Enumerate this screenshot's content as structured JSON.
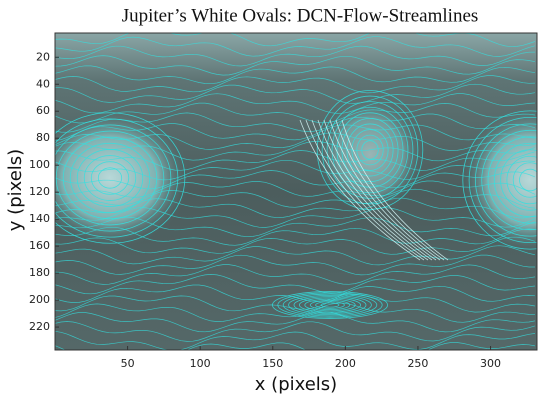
{
  "chart_data": {
    "type": "image",
    "title": "Jupiter’s White Ovals:  DCN-Flow-Streamlines",
    "x_label": "x (pixels)",
    "y_label": "y (pixels)",
    "xlim": [
      0,
      332
    ],
    "ylim": [
      2,
      237
    ],
    "y_inverted": true,
    "xticks": [
      50,
      100,
      150,
      200,
      250,
      300
    ],
    "yticks": [
      20,
      40,
      60,
      80,
      100,
      120,
      140,
      160,
      180,
      200,
      220
    ],
    "color": "#33e0e0"
  }
}
